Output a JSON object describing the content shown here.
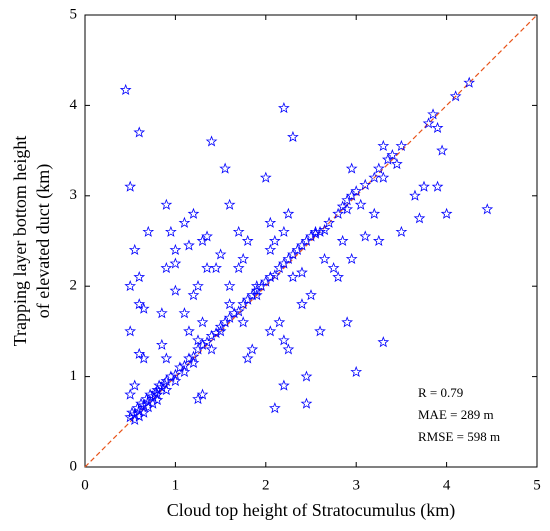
{
  "chart_data": {
    "type": "scatter",
    "xlabel": "Cloud top height of Stratocumulus (km)",
    "ylabel": [
      "Trapping layer bottom height",
      "of elevated duct (km)"
    ],
    "annotations": [
      "R = 0.79",
      "MAE = 289 m",
      "RMSE = 598 m"
    ],
    "xlim": [
      0,
      5
    ],
    "ylim": [
      0,
      5
    ],
    "xticks": [
      0,
      1,
      2,
      3,
      4,
      5
    ],
    "yticks": [
      0,
      1,
      2,
      3,
      4,
      5
    ],
    "color": "#0000ff",
    "line_color": "#e8541a",
    "x": [
      0.45,
      0.5,
      0.6,
      0.6,
      0.55,
      0.5,
      0.6,
      0.7,
      0.65,
      0.5,
      0.6,
      0.65,
      0.5,
      0.55,
      0.9,
      0.95,
      0.9,
      1.0,
      1.0,
      1.1,
      1.15,
      1.2,
      1.1,
      1.15,
      1.0,
      0.85,
      0.85,
      0.9,
      1.2,
      1.3,
      1.35,
      1.4,
      1.35,
      1.25,
      1.3,
      1.25,
      1.4,
      1.45,
      1.5,
      1.6,
      1.55,
      1.6,
      1.7,
      1.75,
      1.8,
      1.7,
      1.6,
      1.5,
      1.75,
      1.8,
      1.85,
      1.9,
      1.9,
      2.0,
      2.05,
      2.05,
      2.1,
      2.2,
      2.3,
      2.25,
      2.2,
      2.15,
      2.2,
      2.25,
      2.05,
      2.1,
      2.2,
      2.45,
      2.45,
      2.6,
      2.4,
      2.5,
      2.65,
      2.75,
      2.8,
      2.9,
      3.0,
      3.3,
      2.95,
      2.9,
      2.85,
      2.95,
      3.05,
      3.1,
      3.2,
      3.25,
      3.3,
      3.3,
      3.45,
      3.5,
      3.65,
      3.75,
      3.7,
      3.8,
      3.85,
      3.9,
      3.95,
      3.9,
      4.0,
      4.1,
      4.25,
      4.45,
      1.3,
      1.25,
      0.8,
      2.3,
      2.4,
      2.55,
      0.5,
      0.52,
      0.55,
      0.58,
      0.6,
      0.62,
      0.65,
      0.68,
      0.7,
      0.72,
      0.75,
      0.78,
      0.8,
      0.82,
      0.85,
      0.88,
      0.9,
      0.95,
      1.0,
      1.05,
      1.1,
      1.15,
      1.2,
      1.25,
      1.3,
      1.35,
      1.4,
      1.45,
      1.5,
      1.55,
      1.6,
      1.65,
      1.7,
      1.75,
      1.8,
      1.85,
      1.9,
      1.95,
      2.0,
      2.05,
      2.1,
      2.15,
      2.2,
      2.25,
      2.3,
      2.35,
      2.4,
      2.45,
      2.5,
      2.55,
      2.6,
      2.65,
      2.7,
      2.8,
      2.85,
      2.9,
      2.95,
      3.0,
      3.1,
      3.2,
      3.25,
      3.35,
      3.4,
      3.5,
      0.55,
      0.6,
      0.7,
      0.75,
      0.9,
      1.0,
      1.1,
      0.65,
      0.8,
      1.2
    ],
    "values": [
      4.17,
      3.1,
      3.7,
      2.1,
      2.4,
      2.0,
      1.8,
      2.6,
      1.75,
      1.5,
      1.25,
      1.2,
      0.8,
      0.9,
      2.9,
      2.6,
      2.2,
      2.25,
      2.4,
      2.7,
      2.45,
      1.9,
      1.7,
      1.5,
      1.95,
      1.7,
      1.35,
      1.2,
      2.8,
      2.5,
      2.55,
      3.6,
      2.2,
      2.0,
      1.6,
      1.4,
      1.3,
      2.2,
      2.35,
      2.0,
      3.3,
      2.9,
      2.6,
      2.3,
      2.5,
      2.2,
      1.8,
      1.5,
      1.6,
      1.2,
      1.3,
      1.9,
      2.0,
      3.2,
      2.7,
      2.4,
      2.5,
      3.97,
      3.65,
      2.8,
      2.6,
      1.6,
      1.4,
      1.3,
      1.5,
      0.65,
      0.9,
      0.7,
      1.0,
      1.5,
      1.8,
      1.9,
      2.3,
      2.2,
      2.1,
      1.6,
      1.05,
      1.38,
      3.3,
      2.85,
      2.5,
      2.3,
      2.9,
      2.55,
      2.8,
      2.5,
      3.55,
      3.2,
      3.35,
      2.6,
      3.0,
      3.1,
      2.75,
      3.8,
      3.9,
      3.75,
      3.5,
      3.1,
      2.8,
      4.1,
      4.25,
      2.85,
      0.8,
      0.75,
      0.85,
      2.1,
      2.15,
      2.6,
      0.55,
      0.6,
      0.58,
      0.65,
      0.62,
      0.7,
      0.68,
      0.75,
      0.72,
      0.8,
      0.78,
      0.82,
      0.8,
      0.9,
      0.88,
      0.92,
      0.95,
      1.0,
      1.02,
      1.1,
      1.12,
      1.2,
      1.22,
      1.3,
      1.35,
      1.38,
      1.45,
      1.48,
      1.55,
      1.6,
      1.65,
      1.7,
      1.72,
      1.8,
      1.85,
      1.9,
      1.95,
      2.0,
      2.05,
      2.1,
      2.12,
      2.2,
      2.25,
      2.3,
      2.35,
      2.4,
      2.45,
      2.5,
      2.55,
      2.58,
      2.6,
      2.62,
      2.7,
      2.8,
      2.88,
      2.95,
      3.0,
      3.05,
      3.12,
      3.2,
      3.3,
      3.4,
      3.45,
      3.55,
      0.52,
      0.56,
      0.66,
      0.7,
      0.85,
      0.95,
      1.05,
      0.6,
      0.74,
      1.15
    ]
  }
}
